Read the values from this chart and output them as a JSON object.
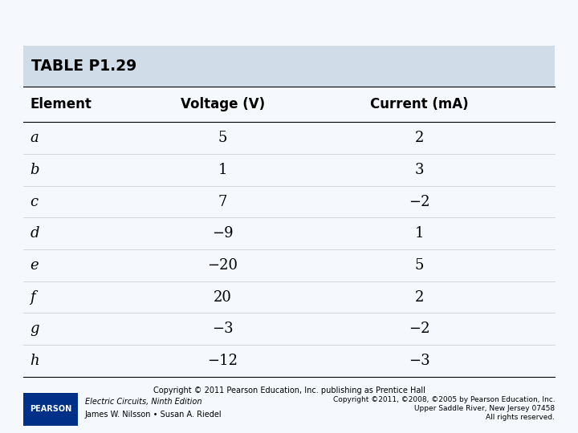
{
  "title": "TABLE P1.29",
  "headers": [
    "Element",
    "Voltage (V)",
    "Current (mA)"
  ],
  "rows": [
    [
      "a",
      "5",
      "2"
    ],
    [
      "b",
      "1",
      "3"
    ],
    [
      "c",
      "7",
      "−2"
    ],
    [
      "d",
      "−9",
      "1"
    ],
    [
      "e",
      "−20",
      "5"
    ],
    [
      "f",
      "20",
      "2"
    ],
    [
      "g",
      "−3",
      "−2"
    ],
    [
      "h",
      "−12",
      "−3"
    ]
  ],
  "title_bg": "#d0dce8",
  "table_bg": "#f5f8fd",
  "footer_text": "Copyright © 2011 Pearson Education, Inc. publishing as Prentice Hall",
  "bottom_left_title": "Electric Circuits, Ninth Edition",
  "bottom_left_subtitle": "James W. Nilsson • Susan A. Riedel",
  "bottom_right_line1": "Copyright ©2011, ©2008, ©2005 by Pearson Education, Inc.",
  "bottom_right_line2": "Upper Saddle River, New Jersey 07458",
  "bottom_right_line3": "All rights reserved.",
  "pearson_logo_color": "#003087"
}
